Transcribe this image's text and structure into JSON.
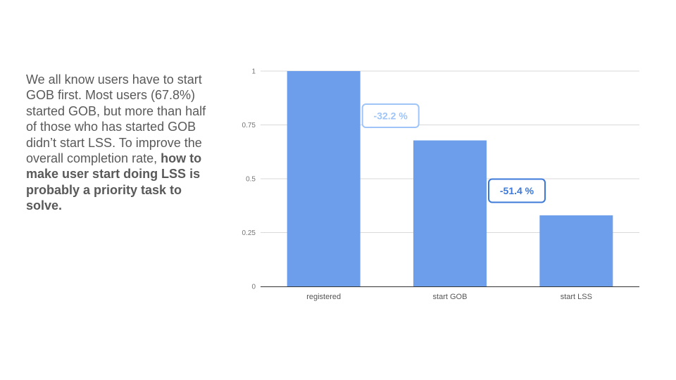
{
  "text": {
    "part1": "We all know users have to start GOB first. Most users (67.8%) started GOB, but more than half of those who has started GOB didn’t start LSS. To improve the overall completion rate, ",
    "part2": "how to make user start doing LSS is probably a priority task to solve."
  },
  "chart_data": {
    "type": "bar",
    "categories": [
      "registered",
      "start GOB",
      "start LSS"
    ],
    "values": [
      1.0,
      0.678,
      0.33
    ],
    "ylim": [
      0,
      1
    ],
    "yticks": [
      0,
      0.25,
      0.5,
      0.75,
      1
    ],
    "ytick_labels": [
      "0",
      "0.25",
      "0.5",
      "0.75",
      "1"
    ],
    "grid": true,
    "bar_color": "#6d9eeb",
    "annotations": [
      {
        "text": "-32.2 %",
        "between": [
          0,
          1
        ],
        "color": "#9fc5f8"
      },
      {
        "text": "-51.4 %",
        "between": [
          1,
          2
        ],
        "color": "#3c78d8"
      }
    ]
  }
}
